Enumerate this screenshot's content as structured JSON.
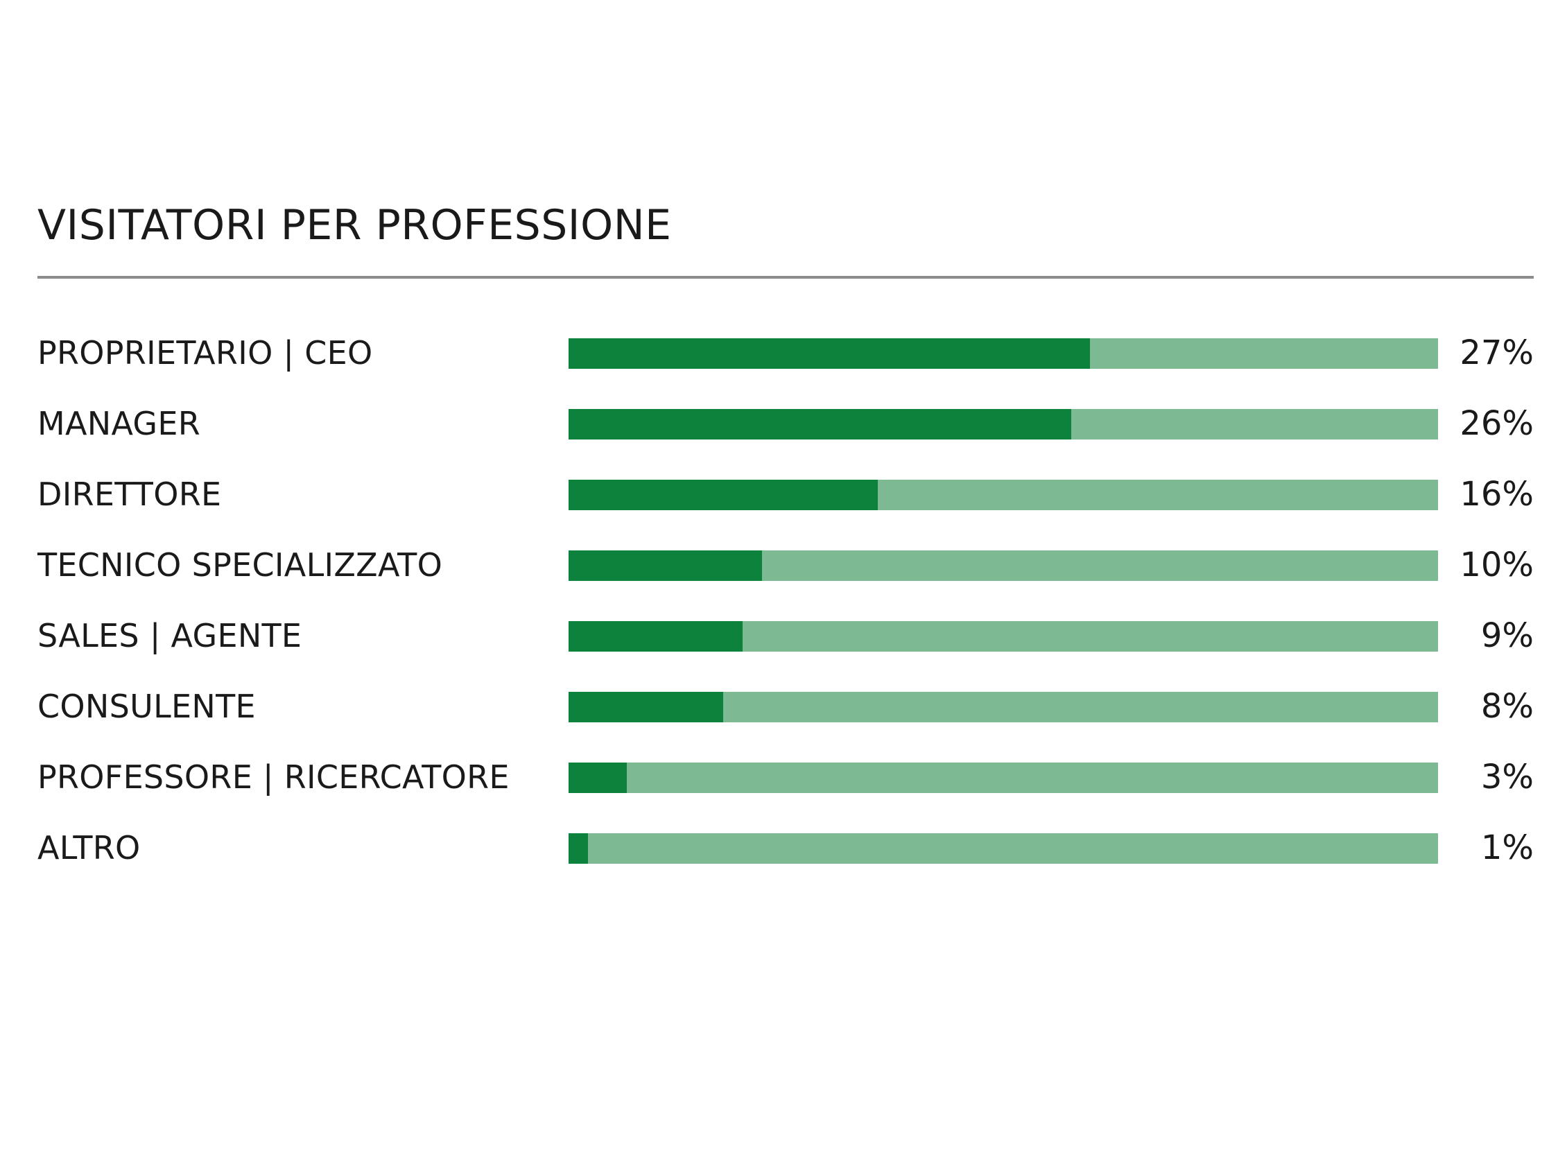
{
  "colors": {
    "fill": "#0d823c",
    "track": "#7dba94",
    "rule": "#8c8c8c",
    "text": "#1a1a1a"
  },
  "chart_data": {
    "type": "bar",
    "orientation": "horizontal",
    "title": "VISITATORI PER PROFESSIONE",
    "xlim": [
      0,
      45
    ],
    "grid": false,
    "categories": [
      "PROPRIETARIO | CEO",
      "MANAGER",
      "DIRETTORE",
      "TECNICO SPECIALIZZATO",
      "SALES | AGENTE",
      "CONSULENTE",
      "PROFESSORE | RICERCATORE",
      "ALTRO"
    ],
    "values": [
      27,
      26,
      16,
      10,
      9,
      8,
      3,
      1
    ],
    "value_labels": [
      "27%",
      "26%",
      "16%",
      "10%",
      "9%",
      "8%",
      "3%",
      "1%"
    ]
  }
}
